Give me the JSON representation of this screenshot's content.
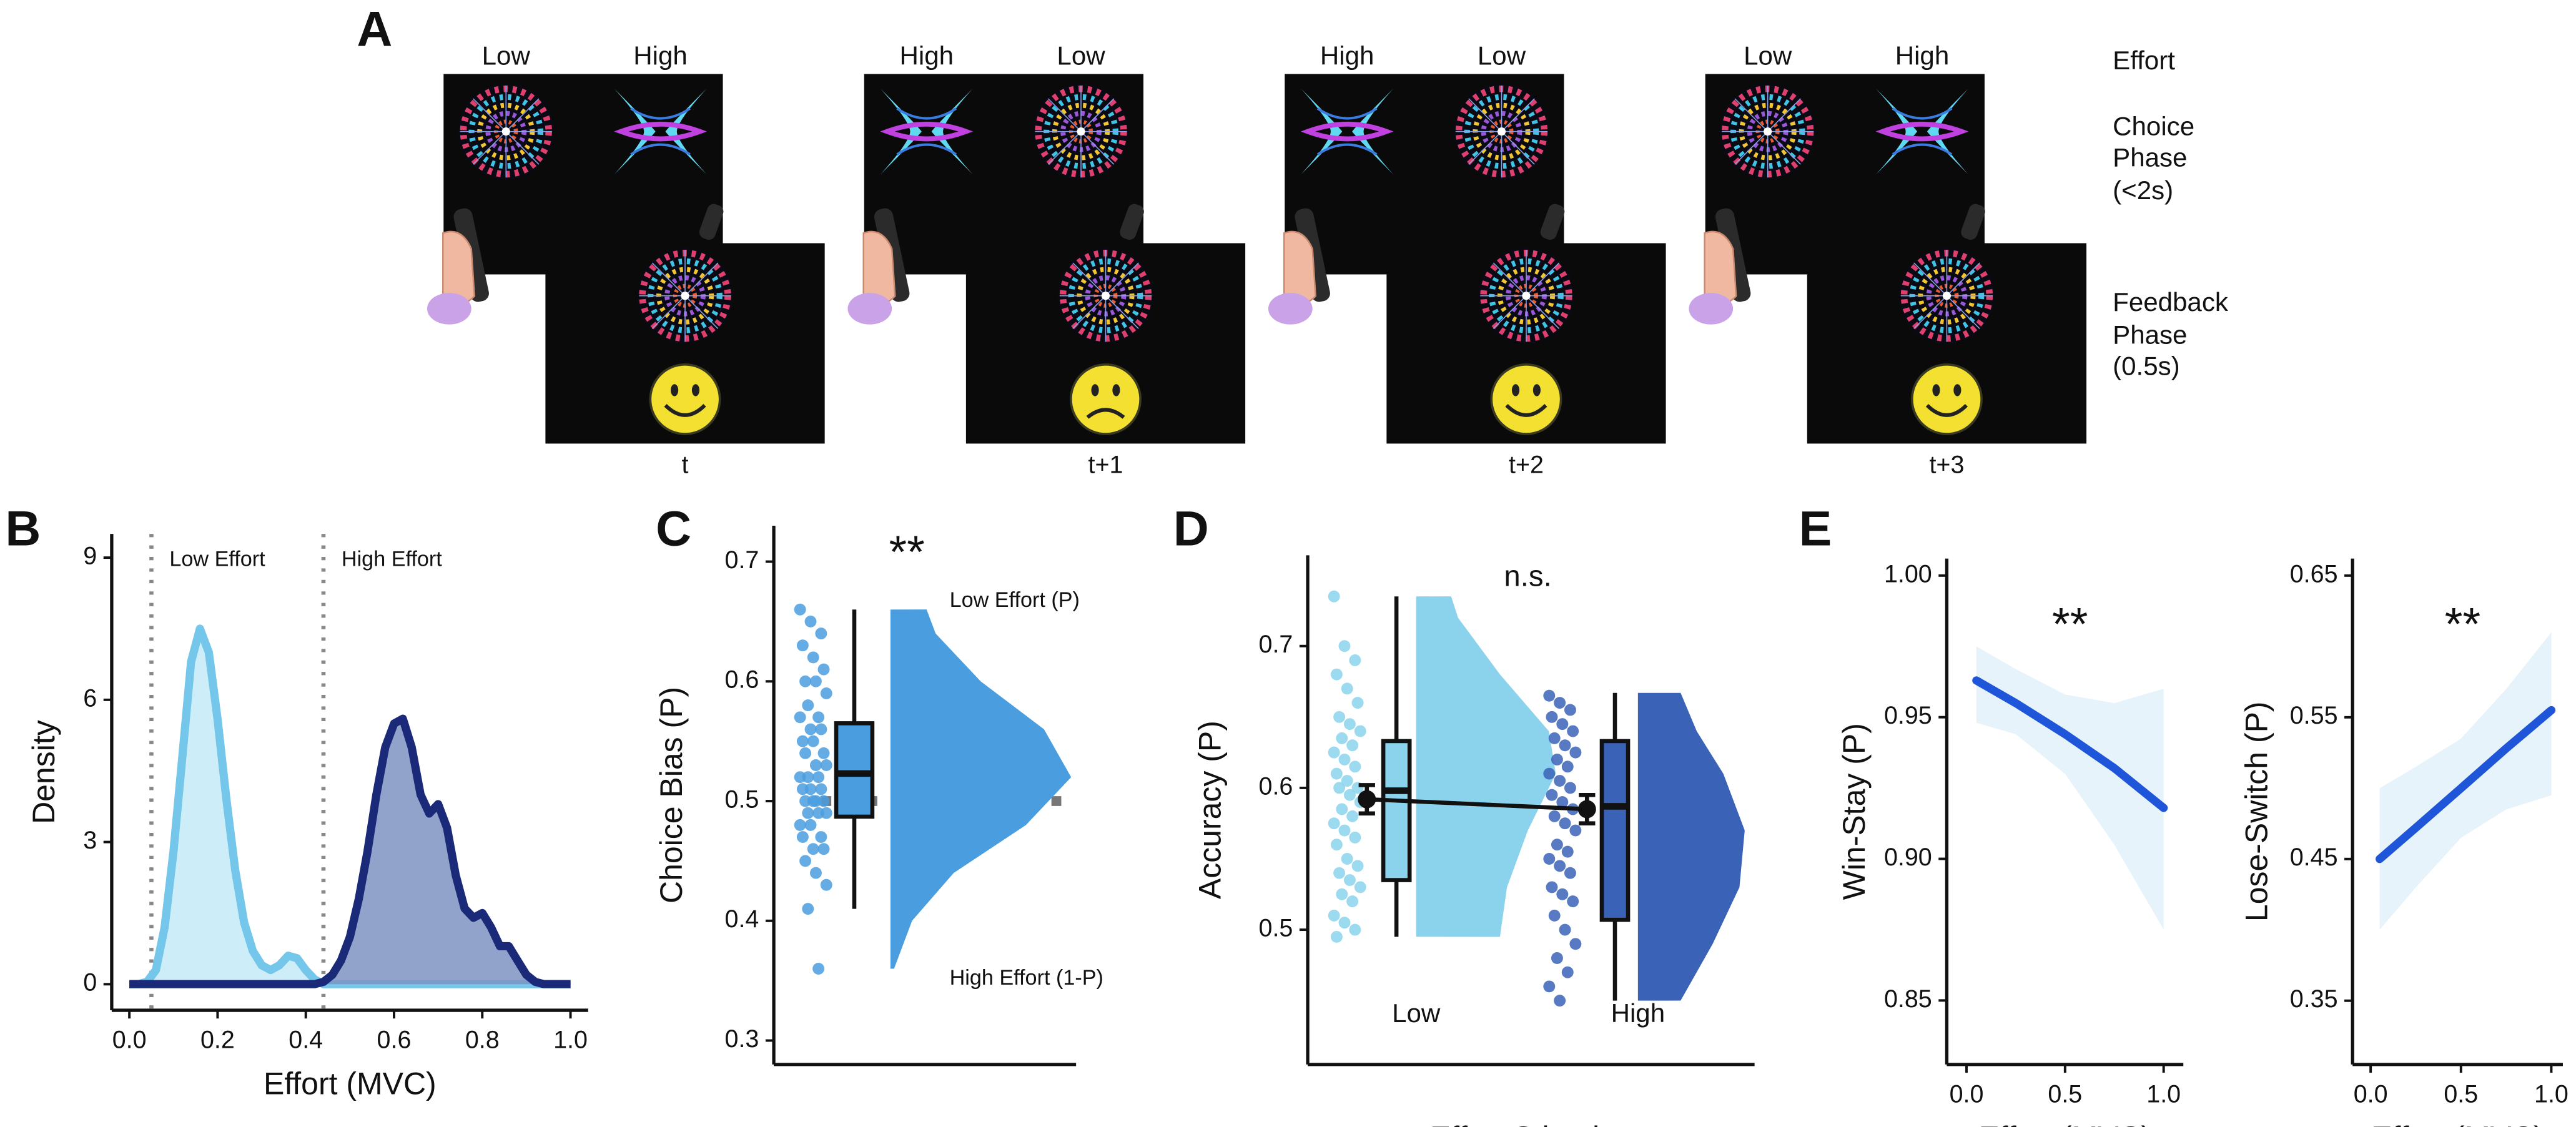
{
  "panel_a": {
    "label": "A",
    "trials": [
      {
        "left": "Low",
        "right": "High",
        "time": "t",
        "feedback": "happy"
      },
      {
        "left": "High",
        "right": "Low",
        "time": "t+1",
        "feedback": "sad"
      },
      {
        "left": "High",
        "right": "Low",
        "time": "t+2",
        "feedback": "happy"
      },
      {
        "left": "Low",
        "right": "High",
        "time": "t+3",
        "feedback": "happy"
      }
    ],
    "phases": {
      "effort": "Effort",
      "choice": [
        "Choice",
        "Phase",
        "(<2s)"
      ],
      "feedback": [
        "Feedback",
        "Phase",
        "(0.5s)"
      ]
    }
  },
  "chart_data": [
    {
      "type": "density",
      "panel": "B",
      "xlabel": "Effort (MVC)",
      "ylabel": "Density",
      "xlim": [
        -0.04,
        1.04
      ],
      "ylim": [
        -0.55,
        9.5
      ],
      "xticks": [
        {
          "value": 0,
          "label": "0.0"
        },
        0.2,
        0.4,
        0.6,
        0.8,
        {
          "value": 1,
          "label": "1.0"
        }
      ],
      "yticks": [
        0,
        3,
        6,
        9
      ],
      "vlines": [
        {
          "value": 0.05,
          "label": "Low Effort"
        },
        {
          "value": 0.44,
          "label": "High Effort"
        }
      ],
      "x": [
        0,
        0.02,
        0.04,
        0.06,
        0.08,
        0.1,
        0.12,
        0.14,
        0.16,
        0.18,
        0.2,
        0.22,
        0.24,
        0.26,
        0.28,
        0.3,
        0.32,
        0.34,
        0.36,
        0.38,
        0.4,
        0.42,
        0.44,
        0.46,
        0.48,
        0.5,
        0.52,
        0.54,
        0.56,
        0.58,
        0.6,
        0.62,
        0.64,
        0.66,
        0.68,
        0.7,
        0.72,
        0.74,
        0.76,
        0.78,
        0.8,
        0.82,
        0.84,
        0.86,
        0.88,
        0.9,
        0.92,
        0.94,
        0.96,
        0.98,
        1
      ],
      "series": [
        {
          "color": "#74c6ea",
          "fill": "#c4ebf7",
          "values": [
            0,
            0,
            0.05,
            0.3,
            1.2,
            2.8,
            4.8,
            6.8,
            7.5,
            7.0,
            5.6,
            3.9,
            2.4,
            1.3,
            0.7,
            0.4,
            0.3,
            0.4,
            0.6,
            0.55,
            0.3,
            0.1,
            0,
            0,
            0,
            0,
            0,
            0,
            0,
            0,
            0,
            0,
            0,
            0,
            0,
            0,
            0,
            0,
            0,
            0,
            0,
            0,
            0,
            0,
            0,
            0,
            0,
            0,
            0,
            0,
            0
          ]
        },
        {
          "color": "#1b2a78",
          "fill": "#7f93c2",
          "values": [
            0,
            0,
            0,
            0,
            0,
            0,
            0,
            0,
            0,
            0,
            0,
            0,
            0,
            0,
            0,
            0,
            0,
            0,
            0,
            0,
            0,
            0,
            0.05,
            0.2,
            0.5,
            1.0,
            1.8,
            2.8,
            4.0,
            5.0,
            5.5,
            5.6,
            5.0,
            4.0,
            3.6,
            3.8,
            3.3,
            2.3,
            1.6,
            1.4,
            1.5,
            1.2,
            0.8,
            0.8,
            0.5,
            0.2,
            0.05,
            0,
            0,
            0,
            0
          ]
        }
      ]
    },
    {
      "type": "raincloud",
      "panel": "C",
      "ylabel": "Choice Bias (P)",
      "annotation": "**",
      "label_top": "Low Effort (P)",
      "label_bottom": "High Effort (1-P)",
      "reference": 0.5,
      "ylim": [
        0.28,
        0.73
      ],
      "yticks": [
        0.3,
        0.4,
        0.5,
        0.6,
        0.7
      ],
      "groups": [
        {
          "color": "#4a9ee0",
          "points": [
            0.66,
            0.65,
            0.64,
            0.63,
            0.62,
            0.61,
            0.6,
            0.6,
            0.59,
            0.58,
            0.57,
            0.57,
            0.56,
            0.56,
            0.55,
            0.55,
            0.54,
            0.54,
            0.53,
            0.53,
            0.52,
            0.52,
            0.52,
            0.51,
            0.51,
            0.51,
            0.5,
            0.5,
            0.5,
            0.5,
            0.49,
            0.49,
            0.49,
            0.48,
            0.48,
            0.47,
            0.47,
            0.46,
            0.46,
            0.45,
            0.44,
            0.43,
            0.41,
            0.36
          ],
          "box": {
            "whisker_low": 0.41,
            "q1": 0.487,
            "median": 0.523,
            "q3": 0.565,
            "whisker_high": 0.66
          },
          "violin": {
            "y": [
              0.36,
              0.4,
              0.44,
              0.48,
              0.52,
              0.56,
              0.6,
              0.64,
              0.66
            ],
            "width": [
              0.02,
              0.12,
              0.35,
              0.75,
              1,
              0.85,
              0.5,
              0.25,
              0.2
            ]
          }
        }
      ]
    },
    {
      "type": "raincloud",
      "panel": "D",
      "ylabel": "Accuracy (P)",
      "xlabel": "Effort Stimulus",
      "annotation": "n.s.",
      "categories": [
        "Low",
        "High"
      ],
      "ylim": [
        0.405,
        0.764
      ],
      "yticks": [
        0.5,
        0.6,
        0.7
      ],
      "groups": [
        {
          "color": "#8bd3ed",
          "mean": 0.592,
          "error": 0.01,
          "points": [
            0.735,
            0.7,
            0.69,
            0.68,
            0.67,
            0.66,
            0.65,
            0.645,
            0.64,
            0.635,
            0.63,
            0.625,
            0.62,
            0.615,
            0.61,
            0.605,
            0.6,
            0.6,
            0.595,
            0.59,
            0.585,
            0.58,
            0.575,
            0.57,
            0.565,
            0.56,
            0.55,
            0.545,
            0.54,
            0.535,
            0.53,
            0.525,
            0.52,
            0.51,
            0.505,
            0.5,
            0.495
          ],
          "box": {
            "whisker_low": 0.495,
            "q1": 0.535,
            "median": 0.598,
            "q3": 0.633,
            "whisker_high": 0.735
          },
          "violin": {
            "y": [
              0.495,
              0.53,
              0.57,
              0.61,
              0.64,
              0.68,
              0.72,
              0.735
            ],
            "width": [
              0.6,
              0.65,
              0.8,
              1,
              0.95,
              0.6,
              0.3,
              0.25
            ]
          }
        },
        {
          "color": "#3a63b8",
          "mean": 0.585,
          "error": 0.01,
          "points": [
            0.665,
            0.66,
            0.655,
            0.65,
            0.645,
            0.64,
            0.635,
            0.63,
            0.625,
            0.62,
            0.615,
            0.61,
            0.605,
            0.6,
            0.595,
            0.59,
            0.585,
            0.58,
            0.575,
            0.57,
            0.56,
            0.555,
            0.55,
            0.545,
            0.54,
            0.53,
            0.525,
            0.52,
            0.51,
            0.5,
            0.49,
            0.48,
            0.47,
            0.46,
            0.45
          ],
          "box": {
            "whisker_low": 0.45,
            "q1": 0.507,
            "median": 0.587,
            "q3": 0.633,
            "whisker_high": 0.667
          },
          "violin": {
            "y": [
              0.45,
              0.49,
              0.53,
              0.57,
              0.61,
              0.64,
              0.667
            ],
            "width": [
              0.4,
              0.7,
              0.95,
              1,
              0.8,
              0.55,
              0.4
            ]
          }
        }
      ]
    },
    {
      "type": "line_ci",
      "panel": "E",
      "ylabel": "Win-Stay (P)",
      "xlabel": "Effort (MVC)",
      "annotation": "**",
      "color": "#1f55d8",
      "band_color": "#e6f3fb",
      "xlim": [
        -0.1,
        1.1
      ],
      "ylim": [
        0.8274,
        1.006
      ],
      "xticks": [
        {
          "value": 0,
          "label": "0.0"
        },
        0.5,
        {
          "value": 1,
          "label": "1.0"
        }
      ],
      "yticks": [
        0.85,
        {
          "value": 0.9,
          "label": "0.90"
        },
        0.95,
        {
          "value": 1,
          "label": "1.00"
        }
      ],
      "x": [
        0.05,
        0.25,
        0.5,
        0.75,
        1
      ],
      "values": [
        0.963,
        0.955,
        0.944,
        0.932,
        0.918
      ],
      "lower": [
        0.948,
        0.944,
        0.93,
        0.905,
        0.875
      ],
      "upper": [
        0.975,
        0.967,
        0.958,
        0.955,
        0.96
      ]
    },
    {
      "type": "line_ci",
      "ylabel": "Lose-Switch (P)",
      "xlabel": "Effort (MVC)",
      "annotation": "**",
      "color": "#1f55d8",
      "band_color": "#e6f3fb",
      "xlim": [
        -0.1,
        1.064
      ],
      "ylim": [
        0.305,
        0.662
      ],
      "xticks": [
        {
          "value": 0,
          "label": "0.0"
        },
        0.5,
        {
          "value": 1,
          "label": "1.0"
        }
      ],
      "yticks": [
        0.35,
        0.45,
        0.55,
        0.65
      ],
      "x": [
        0.05,
        0.25,
        0.5,
        0.75,
        1
      ],
      "values": [
        0.45,
        0.472,
        0.5,
        0.528,
        0.555
      ],
      "lower": [
        0.4,
        0.43,
        0.465,
        0.485,
        0.495
      ],
      "upper": [
        0.5,
        0.515,
        0.535,
        0.57,
        0.61
      ]
    }
  ]
}
